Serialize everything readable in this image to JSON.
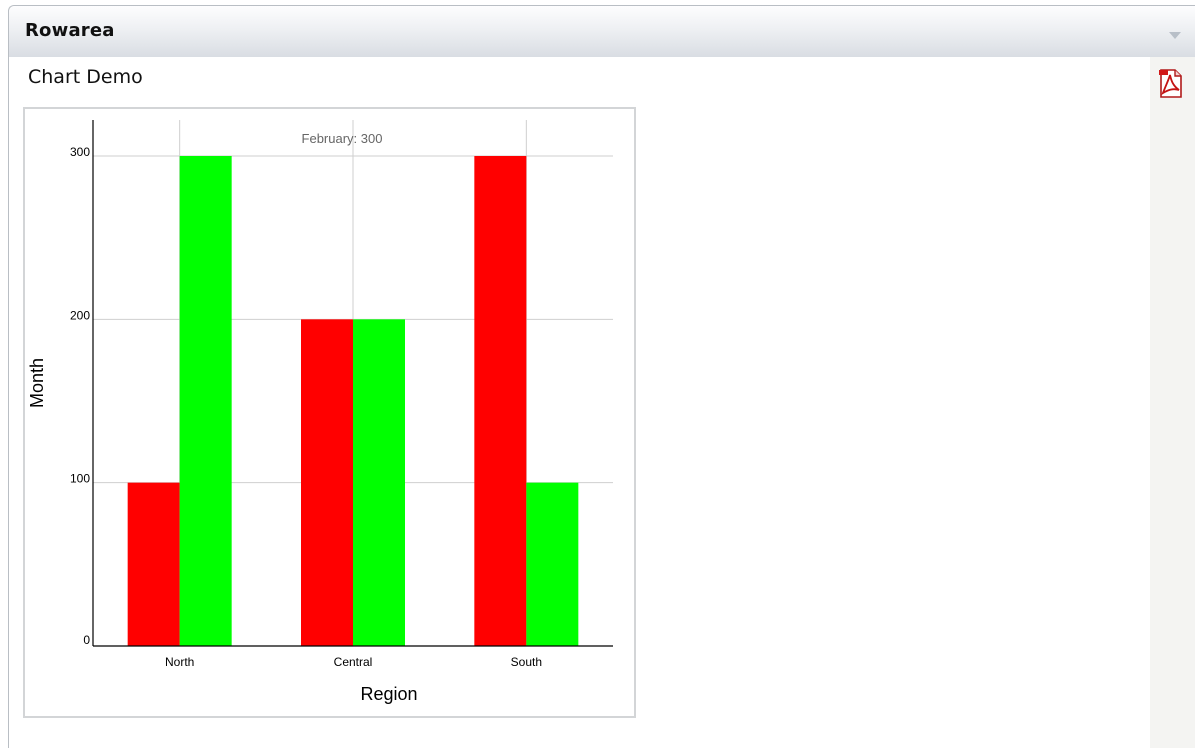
{
  "window": {
    "title": "Rowarea"
  },
  "page": {
    "title": "Chart Demo"
  },
  "toolbar": {
    "collapse_icon": "triangle-down-icon",
    "export_icon": "pdf-icon"
  },
  "chart_data": {
    "type": "bar",
    "categories": [
      "North",
      "Central",
      "South"
    ],
    "series": [
      {
        "values": [
          100,
          200,
          300
        ],
        "color": "#ff0000"
      },
      {
        "values": [
          300,
          200,
          100
        ],
        "color": "#00ff00"
      }
    ],
    "xlabel": "Region",
    "ylabel": "Month",
    "ylim": [
      0,
      300
    ],
    "yticks": [
      0,
      100,
      200,
      300
    ],
    "annotation": "February: 300",
    "grid": true
  }
}
